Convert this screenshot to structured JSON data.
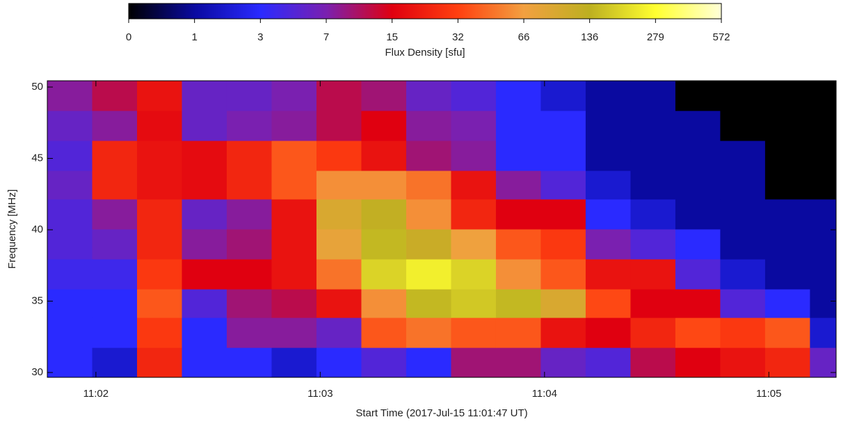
{
  "chart_data": {
    "type": "heatmap",
    "xlabel": "Start Time (2017-Jul-15 11:01:47 UT)",
    "ylabel": "Frequency [MHz]",
    "colorbar_label": "Flux Density [sfu]",
    "colorbar_ticks": [
      0,
      1,
      3,
      7,
      15,
      32,
      66,
      136,
      279,
      572
    ],
    "colorbar_colors": [
      "#000000",
      "#0a0aa0",
      "#2a2aff",
      "#7a20b0",
      "#e00010",
      "#ff4010",
      "#f2a040",
      "#bdb020",
      "#ffff30",
      "#ffffd8"
    ],
    "xlim": [
      0,
      211
    ],
    "xticks": [
      {
        "value": 13,
        "label": "11:02"
      },
      {
        "value": 73,
        "label": "11:03"
      },
      {
        "value": 133,
        "label": "11:04"
      },
      {
        "value": 193,
        "label": "11:05"
      }
    ],
    "ylim": [
      29.66,
      50.44
    ],
    "yticks": [
      30,
      35,
      40,
      45,
      50
    ],
    "x": [
      6,
      18,
      30,
      42,
      54,
      66,
      78,
      90,
      102,
      114,
      126,
      138,
      150,
      162,
      174,
      186,
      198,
      210
    ],
    "y": [
      30.7,
      32.8,
      34.9,
      36.9,
      39.0,
      41.1,
      43.2,
      45.2,
      47.3,
      49.4
    ],
    "values": [
      [
        3,
        2,
        25,
        3,
        3,
        2,
        3,
        5,
        3,
        10,
        10,
        6,
        5,
        12,
        15,
        20,
        25,
        6
      ],
      [
        3,
        3,
        30,
        3,
        8,
        8,
        6,
        40,
        50,
        40,
        40,
        20,
        15,
        25,
        35,
        30,
        40,
        2
      ],
      [
        3,
        3,
        40,
        5,
        10,
        12,
        20,
        60,
        150,
        180,
        150,
        100,
        35,
        15,
        15,
        5,
        3,
        1
      ],
      [
        4,
        4,
        30,
        15,
        15,
        20,
        50,
        200,
        250,
        200,
        60,
        40,
        20,
        20,
        5,
        2,
        1,
        1
      ],
      [
        5,
        6,
        25,
        8,
        10,
        20,
        80,
        150,
        120,
        70,
        40,
        30,
        7,
        5,
        3,
        1,
        1,
        1
      ],
      [
        5,
        8,
        25,
        6,
        8,
        20,
        100,
        130,
        60,
        25,
        15,
        15,
        3,
        2,
        1,
        1,
        1,
        1
      ],
      [
        6,
        25,
        20,
        18,
        25,
        40,
        60,
        60,
        50,
        20,
        8,
        5,
        2,
        1,
        1,
        1,
        0,
        0
      ],
      [
        5,
        25,
        20,
        18,
        25,
        40,
        30,
        20,
        10,
        8,
        3,
        3,
        1,
        1,
        1,
        1,
        0,
        0
      ],
      [
        6,
        8,
        18,
        6,
        7,
        8,
        12,
        15,
        8,
        7,
        3,
        3,
        1,
        1,
        1,
        0,
        0,
        0
      ],
      [
        8,
        12,
        20,
        6,
        6,
        7,
        12,
        10,
        6,
        5,
        3,
        2,
        1,
        1,
        0,
        0,
        0,
        0
      ]
    ]
  }
}
